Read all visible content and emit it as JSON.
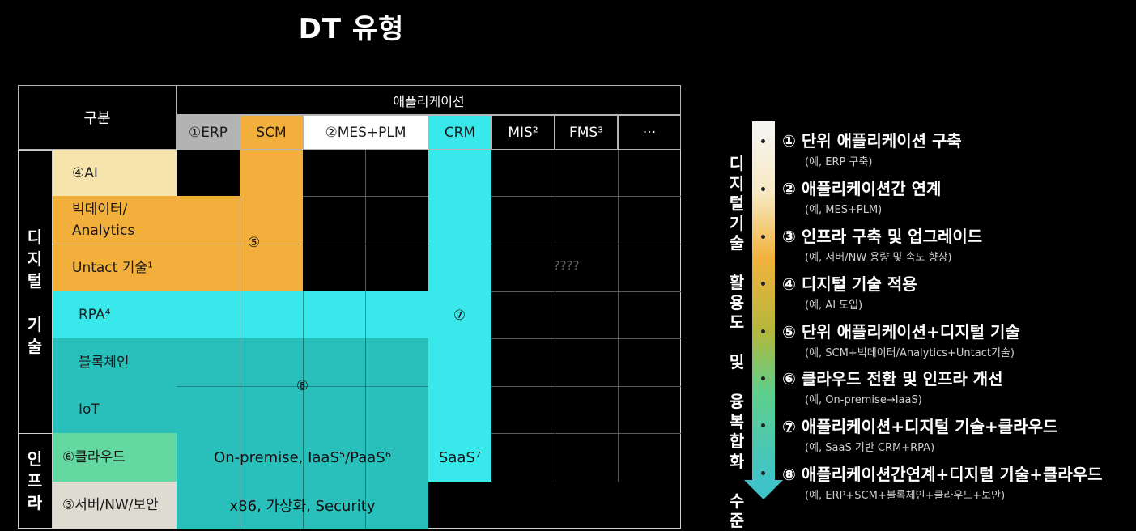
{
  "title": "DT 유형",
  "table": {
    "gubun": "구분",
    "application_group": "애플리케이션",
    "apps": [
      "①ERP",
      "SCM",
      "②MES+PLM",
      "CRM",
      "MIS²",
      "FMS³",
      "···"
    ],
    "digital_tech_label": "디\n지\n털\n\n기\n술",
    "infra_label": "인\n프\n라",
    "rows": {
      "ai": "④AI",
      "bigdata": "빅데이터/\nAnalytics",
      "untact": "Untact 기술¹",
      "rpa": "RPA⁴",
      "blockchain": "블록체인",
      "iot": "IoT",
      "cloud": "⑥클라우드",
      "server": "③서버/NW/보안"
    },
    "cells": {
      "five": "⑤",
      "seven": "⑦",
      "eight": "⑧",
      "unknown": "????",
      "onprem": "On-premise, IaaS⁵/PaaS⁶",
      "saas": "SaaS⁷",
      "x86": "x86, 가상화, Security"
    },
    "colors": {
      "erp_gray": "#b3b3b3",
      "scm_orange": "#f2af3b",
      "mes_white": "#ffffff",
      "crm_cyan": "#38e8ea",
      "ai_light": "#f7e3ac",
      "teal": "#29c0bb",
      "cloud_green": "#63d8a1",
      "server_light": "#dedbd0"
    }
  },
  "arrow_label": "디\n지\n털\n기\n술\n\n활\n용\n도\n\n및\n\n융\n복\n합\n화\n\n수\n준",
  "legend": [
    {
      "main": "① 단위 애플리케이션 구축",
      "sub": "(예, ERP 구축)"
    },
    {
      "main": "② 애플리케이션간 연계",
      "sub": "(예, MES+PLM)"
    },
    {
      "main": "③ 인프라 구축 및 업그레이드",
      "sub": "(예, 서버/NW 용량 및 속도 향상)"
    },
    {
      "main": "④ 디지털 기술 적용",
      "sub": "(예, AI 도입)"
    },
    {
      "main": "⑤ 단위 애플리케이션+디지털 기술",
      "sub": "(예, SCM+빅데이터/Analytics+Untact기술)"
    },
    {
      "main": "⑥ 클라우드 전환 및 인프라 개선",
      "sub": "(예, On-premise→IaaS)"
    },
    {
      "main": "⑦ 애플리케이션+디지털 기술+클라우드",
      "sub": "(예, SaaS 기반 CRM+RPA)"
    },
    {
      "main": "⑧ 애플리케이션간연계+디지털 기술+클라우드",
      "sub": "(예, ERP+SCM+블록체인+클라우드+보안)"
    }
  ]
}
